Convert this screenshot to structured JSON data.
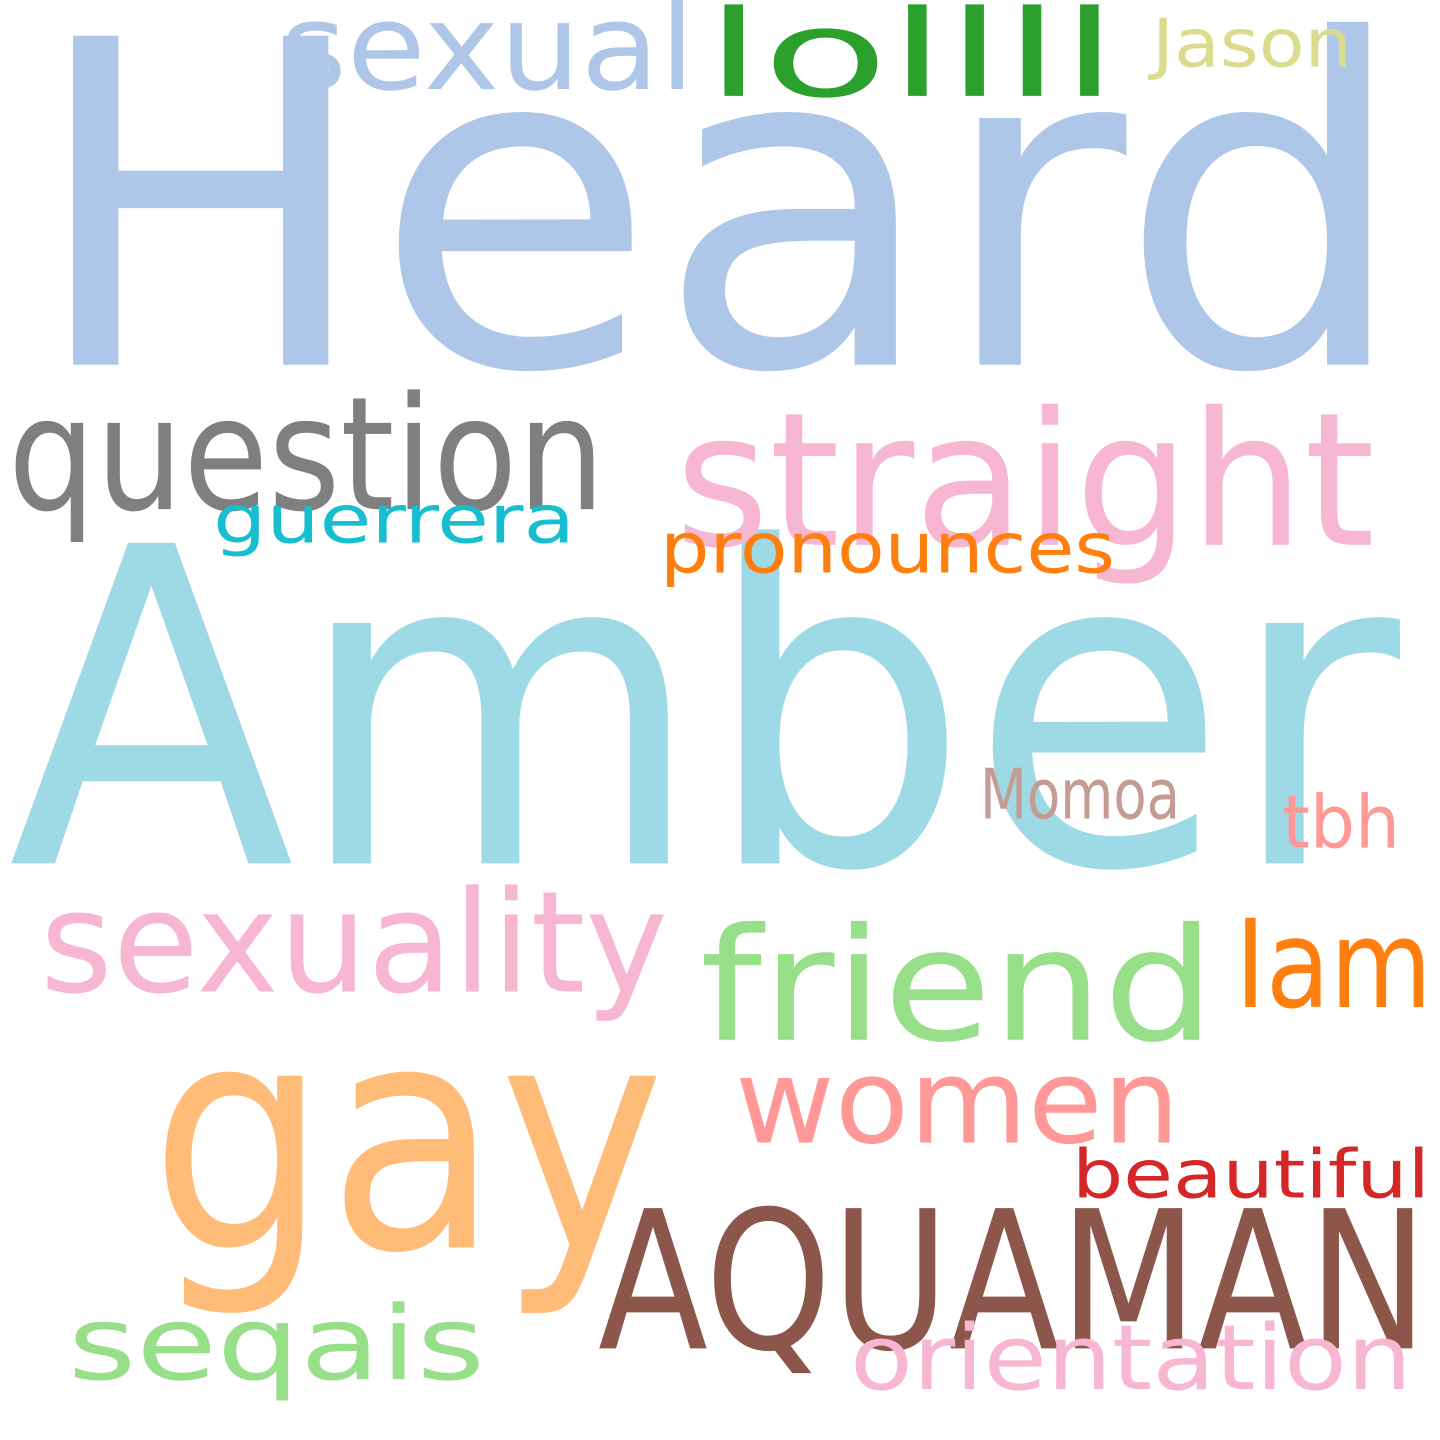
{
  "words": [
    {
      "key": "heard",
      "text": "Heard",
      "color": "#aec7e8"
    },
    {
      "key": "amber",
      "text": "Amber",
      "color": "#9edae5"
    },
    {
      "key": "gay",
      "text": "gay",
      "color": "#ffbb78"
    },
    {
      "key": "aquaman",
      "text": "AQUAMAN",
      "color": "#8c564b"
    },
    {
      "key": "straight",
      "text": "straight",
      "color": "#f7b6d2"
    },
    {
      "key": "question",
      "text": "question",
      "color": "#7f7f7f"
    },
    {
      "key": "friend",
      "text": "friend",
      "color": "#98df8a"
    },
    {
      "key": "women",
      "text": "women",
      "color": "#ff9896"
    },
    {
      "key": "sexuality",
      "text": "sexuality",
      "color": "#f7b6d2"
    },
    {
      "key": "lollll",
      "text": "lollll",
      "color": "#2ca02c"
    },
    {
      "key": "sexual",
      "text": "sexual",
      "color": "#aec7e8"
    },
    {
      "key": "seqais",
      "text": "seqais",
      "color": "#98df8a"
    },
    {
      "key": "iam",
      "text": "Iam",
      "color": "#ff7f0e"
    },
    {
      "key": "orientation",
      "text": "orientation",
      "color": "#f7b6d2"
    },
    {
      "key": "pronounces",
      "text": "pronounces",
      "color": "#ff7f0e"
    },
    {
      "key": "guerrera",
      "text": "guerrera",
      "color": "#17becf"
    },
    {
      "key": "beautiful",
      "text": "beautiful",
      "color": "#d62728"
    },
    {
      "key": "momoa",
      "text": "Momoa",
      "color": "#c49c94"
    },
    {
      "key": "tbh",
      "text": "tbh",
      "color": "#ff9896"
    },
    {
      "key": "jason",
      "text": "Jason",
      "color": "#dbdb8d"
    }
  ]
}
